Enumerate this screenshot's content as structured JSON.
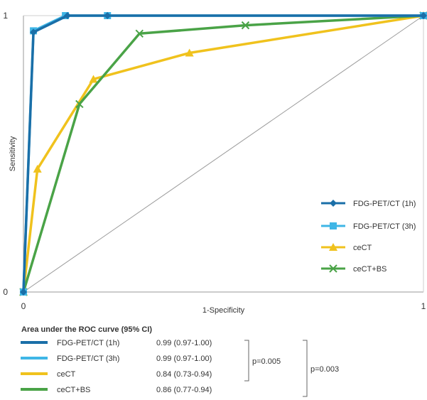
{
  "chart_data": {
    "type": "line",
    "title": "",
    "xlabel": "1-Specificity",
    "ylabel": "Sensitivity",
    "xlim": [
      0,
      1
    ],
    "ylim": [
      0,
      1
    ],
    "x_tick_labels": [
      "0",
      "1"
    ],
    "y_tick_labels": [
      "0",
      "1"
    ],
    "grid": false,
    "legend_position": "lower-right",
    "diagonal_reference": true,
    "series": [
      {
        "name": "FDG-PET/CT (1h)",
        "color": "#1a6fa8",
        "marker": "diamond",
        "x": [
          0,
          0.025,
          0.11,
          0.21,
          1
        ],
        "y": [
          0,
          0.94,
          1,
          1,
          1
        ]
      },
      {
        "name": "FDG-PET/CT (3h)",
        "color": "#3fb6e6",
        "marker": "square",
        "x": [
          0,
          0.025,
          0.105,
          0.21,
          1
        ],
        "y": [
          0,
          0.945,
          1,
          1,
          1
        ]
      },
      {
        "name": "ceCT",
        "color": "#f0c21d",
        "marker": "triangle",
        "x": [
          0,
          0.035,
          0.175,
          0.415,
          1
        ],
        "y": [
          0,
          0.445,
          0.77,
          0.865,
          1
        ]
      },
      {
        "name": "ceCT+BS",
        "color": "#4aa347",
        "marker": "x",
        "x": [
          0,
          0.14,
          0.29,
          0.555,
          1
        ],
        "y": [
          0,
          0.68,
          0.935,
          0.965,
          1
        ]
      }
    ]
  },
  "auc_table": {
    "title": "Area under the ROC curve (95% CI)",
    "rows": [
      {
        "name": "FDG-PET/CT (1h)",
        "value": "0.99 (0.97-1.00)",
        "color": "#1a6fa8"
      },
      {
        "name": "FDG-PET/CT (3h)",
        "value": "0.99 (0.97-1.00)",
        "color": "#3fb6e6"
      },
      {
        "name": "ceCT",
        "value": "0.84 (0.73-0.94)",
        "color": "#f0c21d"
      },
      {
        "name": "ceCT+BS",
        "value": "0.86 (0.77-0.94)",
        "color": "#4aa347"
      }
    ],
    "p_values": [
      "p=0.005",
      "p=0.003"
    ]
  }
}
